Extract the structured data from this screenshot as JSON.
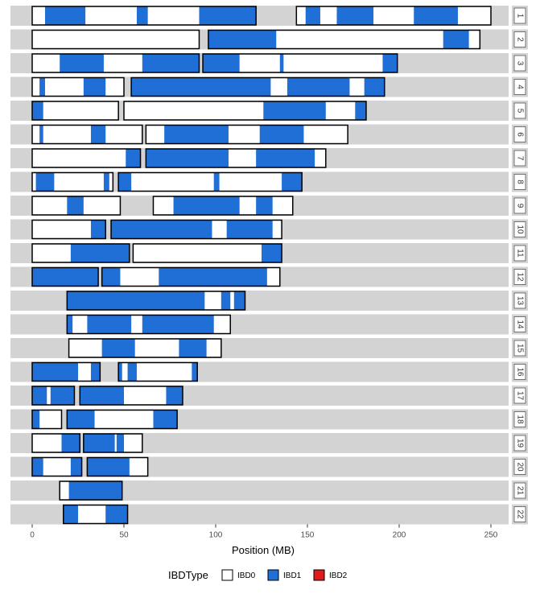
{
  "chart_data": {
    "type": "bar",
    "xlabel": "Position (MB)",
    "xlim": [
      -12,
      262
    ],
    "xticks": [
      0,
      50,
      100,
      150,
      200,
      250
    ],
    "grid": false,
    "legend_position": "bottom",
    "legend": {
      "title": "IBDType",
      "entries": [
        {
          "label": "IBD0",
          "color": "#ffffff"
        },
        {
          "label": "IBD1",
          "color": "#1f6fd6"
        },
        {
          "label": "IBD2",
          "color": "#e31a1c"
        }
      ]
    },
    "colors": {
      "track": "#d3d3d3",
      "ibd0": "#ffffff",
      "ibd1": "#1f6fd6",
      "outline": "#000000"
    },
    "chromosomes": [
      {
        "label": "1",
        "length": 250,
        "blocks": [
          [
            0,
            122
          ],
          [
            144,
            250
          ]
        ],
        "ibd1": [
          [
            7,
            29
          ],
          [
            57,
            63
          ],
          [
            91,
            122
          ],
          [
            149,
            157
          ],
          [
            166,
            186
          ],
          [
            208,
            232
          ]
        ]
      },
      {
        "label": "2",
        "length": 244,
        "blocks": [
          [
            0,
            91
          ],
          [
            96,
            244
          ]
        ],
        "ibd1": [
          [
            96,
            133
          ],
          [
            224,
            238
          ]
        ]
      },
      {
        "label": "3",
        "length": 199,
        "blocks": [
          [
            0,
            91
          ],
          [
            93,
            199
          ]
        ],
        "ibd1": [
          [
            15,
            39
          ],
          [
            60,
            91
          ],
          [
            93,
            113
          ],
          [
            135,
            137
          ],
          [
            191,
            199
          ]
        ]
      },
      {
        "label": "4",
        "length": 192,
        "blocks": [
          [
            0,
            50
          ],
          [
            54,
            192
          ]
        ],
        "ibd1": [
          [
            4,
            7
          ],
          [
            28,
            40
          ],
          [
            54,
            130
          ],
          [
            139,
            173
          ],
          [
            181,
            192
          ]
        ]
      },
      {
        "label": "5",
        "length": 182,
        "blocks": [
          [
            0,
            47
          ],
          [
            50,
            182
          ]
        ],
        "ibd1": [
          [
            0,
            6
          ],
          [
            126,
            160
          ],
          [
            176,
            182
          ]
        ]
      },
      {
        "label": "6",
        "length": 172,
        "blocks": [
          [
            0,
            60
          ],
          [
            62,
            172
          ]
        ],
        "ibd1": [
          [
            4,
            6
          ],
          [
            32,
            40
          ],
          [
            72,
            107
          ],
          [
            124,
            148
          ]
        ]
      },
      {
        "label": "7",
        "length": 160,
        "blocks": [
          [
            0,
            59
          ],
          [
            62,
            160
          ]
        ],
        "ibd1": [
          [
            51,
            59
          ],
          [
            62,
            107
          ],
          [
            122,
            154
          ]
        ]
      },
      {
        "label": "8",
        "length": 147,
        "blocks": [
          [
            0,
            44
          ],
          [
            47,
            147
          ]
        ],
        "ibd1": [
          [
            2,
            12
          ],
          [
            39,
            42
          ],
          [
            47,
            54
          ],
          [
            99,
            102
          ],
          [
            136,
            147
          ]
        ]
      },
      {
        "label": "9",
        "length": 142,
        "blocks": [
          [
            0,
            48
          ],
          [
            66,
            142
          ]
        ],
        "ibd1": [
          [
            19,
            28
          ],
          [
            77,
            113
          ],
          [
            122,
            131
          ]
        ]
      },
      {
        "label": "10",
        "length": 136,
        "blocks": [
          [
            0,
            40
          ],
          [
            43,
            136
          ]
        ],
        "ibd1": [
          [
            32,
            40
          ],
          [
            43,
            98
          ],
          [
            106,
            131
          ]
        ]
      },
      {
        "label": "11",
        "length": 136,
        "blocks": [
          [
            0,
            53
          ],
          [
            55,
            136
          ]
        ],
        "ibd1": [
          [
            21,
            53
          ],
          [
            125,
            136
          ]
        ]
      },
      {
        "label": "12",
        "length": 135,
        "blocks": [
          [
            0,
            36
          ],
          [
            38,
            135
          ]
        ],
        "ibd1": [
          [
            0,
            36
          ],
          [
            38,
            48
          ],
          [
            69,
            128
          ]
        ]
      },
      {
        "label": "13",
        "length": 116,
        "blocks": [
          [
            19,
            116
          ]
        ],
        "ibd1": [
          [
            19,
            94
          ],
          [
            103,
            108
          ],
          [
            110,
            116
          ]
        ]
      },
      {
        "label": "14",
        "length": 108,
        "blocks": [
          [
            19,
            108
          ]
        ],
        "ibd1": [
          [
            19,
            22
          ],
          [
            30,
            54
          ],
          [
            60,
            99
          ]
        ]
      },
      {
        "label": "15",
        "length": 103,
        "blocks": [
          [
            20,
            103
          ]
        ],
        "ibd1": [
          [
            38,
            56
          ],
          [
            80,
            95
          ]
        ]
      },
      {
        "label": "16",
        "length": 90,
        "blocks": [
          [
            0,
            37
          ],
          [
            47,
            90
          ]
        ],
        "ibd1": [
          [
            0,
            25
          ],
          [
            32,
            37
          ],
          [
            47,
            49
          ],
          [
            52,
            57
          ],
          [
            87,
            90
          ]
        ]
      },
      {
        "label": "17",
        "length": 82,
        "blocks": [
          [
            0,
            23
          ],
          [
            26,
            82
          ]
        ],
        "ibd1": [
          [
            0,
            8
          ],
          [
            10,
            23
          ],
          [
            26,
            50
          ],
          [
            73,
            82
          ]
        ]
      },
      {
        "label": "18",
        "length": 79,
        "blocks": [
          [
            0,
            16
          ],
          [
            19,
            79
          ]
        ],
        "ibd1": [
          [
            0,
            4
          ],
          [
            19,
            34
          ],
          [
            66,
            79
          ]
        ]
      },
      {
        "label": "19",
        "length": 60,
        "blocks": [
          [
            0,
            26
          ],
          [
            28,
            60
          ]
        ],
        "ibd1": [
          [
            16,
            26
          ],
          [
            28,
            45
          ],
          [
            46,
            50
          ]
        ]
      },
      {
        "label": "20",
        "length": 63,
        "blocks": [
          [
            0,
            27
          ],
          [
            30,
            63
          ]
        ],
        "ibd1": [
          [
            0,
            6
          ],
          [
            21,
            27
          ],
          [
            30,
            53
          ]
        ]
      },
      {
        "label": "21",
        "length": 49,
        "blocks": [
          [
            15,
            49
          ]
        ],
        "ibd1": [
          [
            20,
            49
          ]
        ]
      },
      {
        "label": "22",
        "length": 52,
        "blocks": [
          [
            17,
            52
          ]
        ],
        "ibd1": [
          [
            17,
            25
          ],
          [
            40,
            52
          ]
        ]
      }
    ]
  }
}
